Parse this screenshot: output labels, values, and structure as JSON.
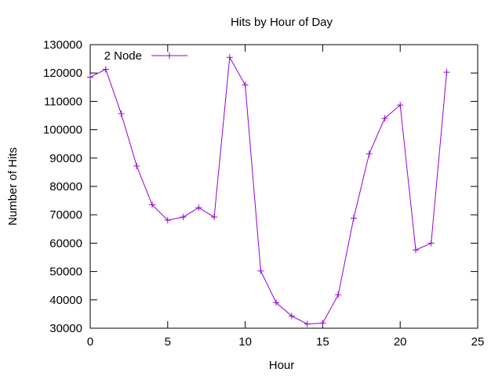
{
  "chart_data": {
    "type": "line",
    "title": "Hits by Hour of Day",
    "xlabel": "Hour",
    "ylabel": "Number of Hits",
    "xlim": [
      0,
      25
    ],
    "ylim": [
      30000,
      130000
    ],
    "xticks": [
      0,
      5,
      10,
      15,
      20,
      25
    ],
    "yticks": [
      30000,
      40000,
      50000,
      60000,
      70000,
      80000,
      90000,
      100000,
      110000,
      120000,
      130000
    ],
    "grid": false,
    "legend_position": "top-left",
    "series": [
      {
        "name": "2 Node",
        "color": "#9400d3",
        "marker": "plus",
        "x": [
          0,
          1,
          2,
          3,
          4,
          5,
          6,
          7,
          8,
          9,
          10,
          11,
          12,
          13,
          14,
          15,
          16,
          17,
          18,
          19,
          20,
          21,
          22,
          23
        ],
        "values": [
          118500,
          121300,
          105700,
          87200,
          73500,
          68100,
          69200,
          72500,
          69200,
          125500,
          115800,
          50200,
          39000,
          34300,
          31500,
          31800,
          41800,
          68800,
          91500,
          104000,
          108700,
          57600,
          60000,
          120300
        ]
      }
    ]
  }
}
